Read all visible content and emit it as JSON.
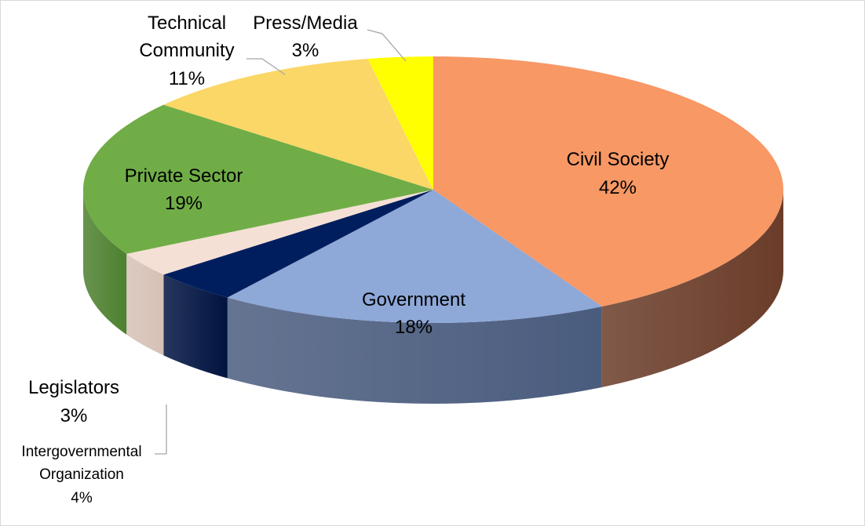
{
  "chart_data": {
    "type": "pie",
    "style": "3d",
    "title": "",
    "legend": "none",
    "slices": [
      {
        "name": "Civil Society",
        "value": 42,
        "label": "42%",
        "color": "#F79865",
        "side_color": "#6A3C29"
      },
      {
        "name": "Government",
        "value": 18,
        "label": "18%",
        "color": "#8EA8D8",
        "side_color": "#4A5C7E"
      },
      {
        "name": "Intergovernmental Organization",
        "value": 4,
        "label": "4%",
        "color": "#001E5E",
        "side_color": "#001340"
      },
      {
        "name": "Legislators",
        "value": 3,
        "label": "3%",
        "color": "#F5E0D5",
        "side_color": "#D6C1B6"
      },
      {
        "name": "Private Sector",
        "value": 19,
        "label": "19%",
        "color": "#70AD47",
        "side_color": "#4E8030"
      },
      {
        "name": "Technical Community",
        "value": 11,
        "label": "11%",
        "color": "#FBD767",
        "side_color": "#C9A845"
      },
      {
        "name": "Press/Media",
        "value": 3,
        "label": "3%",
        "color": "#FFFF00",
        "side_color": "#C8C800"
      }
    ],
    "labels": {
      "civil_society": [
        "Civil Society",
        "42%"
      ],
      "government": [
        "Government",
        "18%"
      ],
      "private_sector": [
        "Private Sector",
        "19%"
      ],
      "technical_community": [
        "Technical",
        "Community",
        "11%"
      ],
      "press_media": [
        "Press/Media",
        "3%"
      ],
      "legislators": [
        "Legislators",
        "3%"
      ],
      "intergovernmental": [
        "Intergovernmental",
        "Organization",
        "4%"
      ]
    }
  }
}
